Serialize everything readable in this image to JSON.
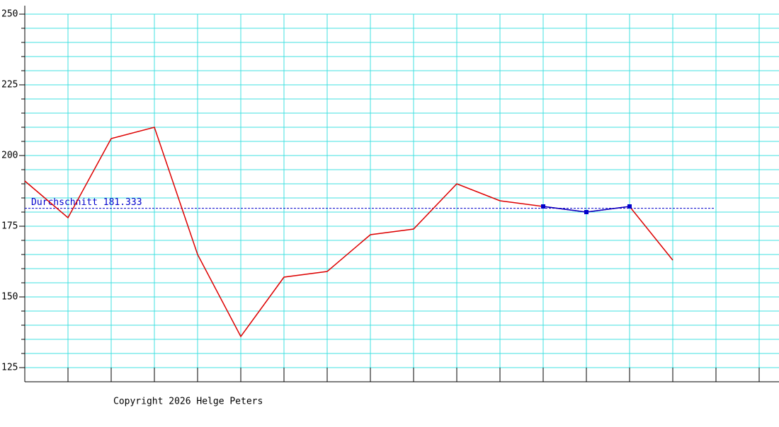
{
  "chart_data": {
    "type": "line",
    "categories": [
      null,
      null,
      null,
      null,
      null,
      null,
      null,
      null,
      null,
      null,
      null,
      null,
      null,
      null,
      null,
      null,
      null,
      null
    ],
    "series": [
      {
        "color": "#dd0000",
        "values": [
          191,
          178,
          206,
          210,
          165,
          136,
          157,
          159,
          172,
          174,
          190,
          184,
          182,
          180,
          182,
          163,
          null,
          null
        ]
      },
      {
        "color": "#0000cc",
        "markers": true,
        "values": [
          null,
          null,
          null,
          null,
          null,
          null,
          null,
          null,
          null,
          null,
          null,
          null,
          182,
          180,
          182,
          null,
          null,
          null
        ]
      }
    ],
    "reference_line": {
      "value": 181.333,
      "label": "Durchschnitt 181.333",
      "color": "#0000cc"
    },
    "ylim": [
      120,
      253
    ],
    "yticks": [
      125,
      150,
      175,
      200,
      225,
      250
    ],
    "minor_yticks": [
      125,
      130,
      135,
      140,
      145,
      150,
      155,
      160,
      165,
      170,
      175,
      180,
      185,
      190,
      195,
      200,
      205,
      210,
      215,
      220,
      225,
      230,
      235,
      240,
      245,
      250
    ],
    "grid": true,
    "grid_color": "#40e0e0",
    "footer": "Copyright 2026 Helge Peters"
  }
}
